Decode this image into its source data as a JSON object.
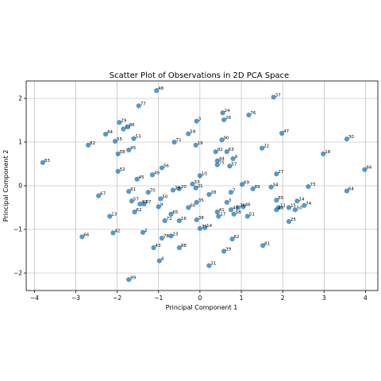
{
  "chart_data": {
    "type": "scatter",
    "title": "Scatter Plot of Observations in 2D PCA Space",
    "xlabel": "Principal Component 1",
    "ylabel": "Principal Component 2",
    "xlim": [
      -4.2,
      4.3
    ],
    "ylim": [
      -2.4,
      2.4
    ],
    "xticks": [
      -4,
      -3,
      -2,
      -1,
      0,
      1,
      2,
      3,
      4
    ],
    "yticks": [
      -2,
      -1,
      0,
      1,
      2
    ],
    "grid": true,
    "marker_color": "#1f77b4",
    "points": [
      {
        "label": "48",
        "x": -1.05,
        "y": 2.18
      },
      {
        "label": "77",
        "x": -1.48,
        "y": 1.83
      },
      {
        "label": "37",
        "x": 1.78,
        "y": 2.03
      },
      {
        "label": "24",
        "x": 0.55,
        "y": 1.67
      },
      {
        "label": "26",
        "x": 0.58,
        "y": 1.51
      },
      {
        "label": "3",
        "x": -0.08,
        "y": 1.48
      },
      {
        "label": "76",
        "x": 1.18,
        "y": 1.62
      },
      {
        "label": "29",
        "x": -1.95,
        "y": 1.45
      },
      {
        "label": "12",
        "x": -1.85,
        "y": 1.3
      },
      {
        "label": "86",
        "x": -1.75,
        "y": 1.35
      },
      {
        "label": "84",
        "x": -2.28,
        "y": 1.18
      },
      {
        "label": "59",
        "x": -0.28,
        "y": 1.19
      },
      {
        "label": "47",
        "x": 1.98,
        "y": 1.2
      },
      {
        "label": "55",
        "x": -2.05,
        "y": 1.02
      },
      {
        "label": "82",
        "x": -2.7,
        "y": 0.93
      },
      {
        "label": "53",
        "x": -1.6,
        "y": 1.08
      },
      {
        "label": "71",
        "x": -0.62,
        "y": 1.0
      },
      {
        "label": "19",
        "x": -0.1,
        "y": 0.93
      },
      {
        "label": "90",
        "x": 0.53,
        "y": 1.05
      },
      {
        "label": "30",
        "x": 3.55,
        "y": 1.07
      },
      {
        "label": "95",
        "x": -1.72,
        "y": 0.82
      },
      {
        "label": "58",
        "x": -1.98,
        "y": 0.73
      },
      {
        "label": "22",
        "x": 1.5,
        "y": 0.86
      },
      {
        "label": "92",
        "x": 0.38,
        "y": 0.78
      },
      {
        "label": "63",
        "x": 0.65,
        "y": 0.78
      },
      {
        "label": "18",
        "x": 2.98,
        "y": 0.73
      },
      {
        "label": "9",
        "x": 0.8,
        "y": 0.62
      },
      {
        "label": "44",
        "x": 0.42,
        "y": 0.57
      },
      {
        "label": "75",
        "x": 0.42,
        "y": 0.48
      },
      {
        "label": "57",
        "x": 0.72,
        "y": 0.45
      },
      {
        "label": "83",
        "x": -3.8,
        "y": 0.53
      },
      {
        "label": "52",
        "x": -1.98,
        "y": 0.33
      },
      {
        "label": "56",
        "x": -0.92,
        "y": 0.41
      },
      {
        "label": "84b",
        "display": "84",
        "x": 3.98,
        "y": 0.37
      },
      {
        "label": "49",
        "x": -1.15,
        "y": 0.25
      },
      {
        "label": "45",
        "x": -1.52,
        "y": 0.15
      },
      {
        "label": "27",
        "x": 1.85,
        "y": 0.27
      },
      {
        "label": "10",
        "x": 0.0,
        "y": 0.23
      },
      {
        "label": "33",
        "x": -0.18,
        "y": 0.04
      },
      {
        "label": "69",
        "x": 1.02,
        "y": 0.03
      },
      {
        "label": "89",
        "x": 1.28,
        "y": -0.07
      },
      {
        "label": "34",
        "x": 1.72,
        "y": -0.03
      },
      {
        "label": "73",
        "x": 2.62,
        "y": -0.02
      },
      {
        "label": "20",
        "x": -0.5,
        "y": -0.07
      },
      {
        "label": "21",
        "x": -0.1,
        "y": -0.05
      },
      {
        "label": "39",
        "x": -0.65,
        "y": -0.1
      },
      {
        "label": "61",
        "x": -1.72,
        "y": -0.13
      },
      {
        "label": "70",
        "x": -1.25,
        "y": -0.15
      },
      {
        "label": "67",
        "x": -2.45,
        "y": -0.23
      },
      {
        "label": "28",
        "x": 0.22,
        "y": -0.2
      },
      {
        "label": "64",
        "x": 3.55,
        "y": -0.12
      },
      {
        "label": "7",
        "x": 0.75,
        "y": -0.15
      },
      {
        "label": "50",
        "x": -0.95,
        "y": -0.3
      },
      {
        "label": "57b",
        "display": "57",
        "x": -1.65,
        "y": -0.35
      },
      {
        "label": "65",
        "x": 1.85,
        "y": -0.33
      },
      {
        "label": "14",
        "x": 2.35,
        "y": -0.35
      },
      {
        "label": "35",
        "x": -0.08,
        "y": -0.38
      },
      {
        "label": "3b",
        "display": "3",
        "x": 0.65,
        "y": -0.38
      },
      {
        "label": "87",
        "x": -1.35,
        "y": -0.42
      },
      {
        "label": "40",
        "x": -1.45,
        "y": -0.42
      },
      {
        "label": "62",
        "x": -1.58,
        "y": -0.6
      },
      {
        "label": "9b",
        "display": "9",
        "x": -1.0,
        "y": -0.48
      },
      {
        "label": "60",
        "x": -0.28,
        "y": -0.5
      },
      {
        "label": "46",
        "x": 1.05,
        "y": -0.48
      },
      {
        "label": "36",
        "x": 0.92,
        "y": -0.5
      },
      {
        "label": "43",
        "x": 0.75,
        "y": -0.55
      },
      {
        "label": "15",
        "x": 2.15,
        "y": -0.5
      },
      {
        "label": "74",
        "x": 2.52,
        "y": -0.45
      },
      {
        "label": "11",
        "x": 1.9,
        "y": -0.5
      },
      {
        "label": "50b",
        "display": "50",
        "x": 2.3,
        "y": -0.55
      },
      {
        "label": "41",
        "x": 0.42,
        "y": -0.6
      },
      {
        "label": "17",
        "x": 0.45,
        "y": -0.7
      },
      {
        "label": "58b",
        "display": "58",
        "x": 0.82,
        "y": -0.65
      },
      {
        "label": "51",
        "x": 1.15,
        "y": -0.7
      },
      {
        "label": "48b",
        "display": "48",
        "x": 1.85,
        "y": -0.55
      },
      {
        "label": "13",
        "x": -2.18,
        "y": -0.7
      },
      {
        "label": "65b",
        "display": "65",
        "x": -0.7,
        "y": -0.65
      },
      {
        "label": "72",
        "x": -0.85,
        "y": -0.8
      },
      {
        "label": "16",
        "x": -0.5,
        "y": -0.8
      },
      {
        "label": "38",
        "x": -0.08,
        "y": -0.78
      },
      {
        "label": "25",
        "x": 2.15,
        "y": -0.82
      },
      {
        "label": "79",
        "x": 0.0,
        "y": -0.98
      },
      {
        "label": "14b",
        "display": "14",
        "x": 0.12,
        "y": -0.96
      },
      {
        "label": "2",
        "x": -1.38,
        "y": -1.07
      },
      {
        "label": "42",
        "x": -2.1,
        "y": -1.08
      },
      {
        "label": "66",
        "x": -2.85,
        "y": -1.17
      },
      {
        "label": "23",
        "x": -0.7,
        "y": -1.15
      },
      {
        "label": "78",
        "x": -0.92,
        "y": -1.2
      },
      {
        "label": "62b",
        "display": "62",
        "x": 0.78,
        "y": -1.22
      },
      {
        "label": "43b",
        "display": "43",
        "x": -1.12,
        "y": -1.42
      },
      {
        "label": "88",
        "x": -0.5,
        "y": -1.42
      },
      {
        "label": "81",
        "x": 1.52,
        "y": -1.37
      },
      {
        "label": "39b",
        "display": "39",
        "x": 0.58,
        "y": -1.5
      },
      {
        "label": "4",
        "x": -0.98,
        "y": -1.72
      },
      {
        "label": "31",
        "x": 0.22,
        "y": -1.83
      },
      {
        "label": "99",
        "x": -1.72,
        "y": -2.15
      }
    ]
  }
}
